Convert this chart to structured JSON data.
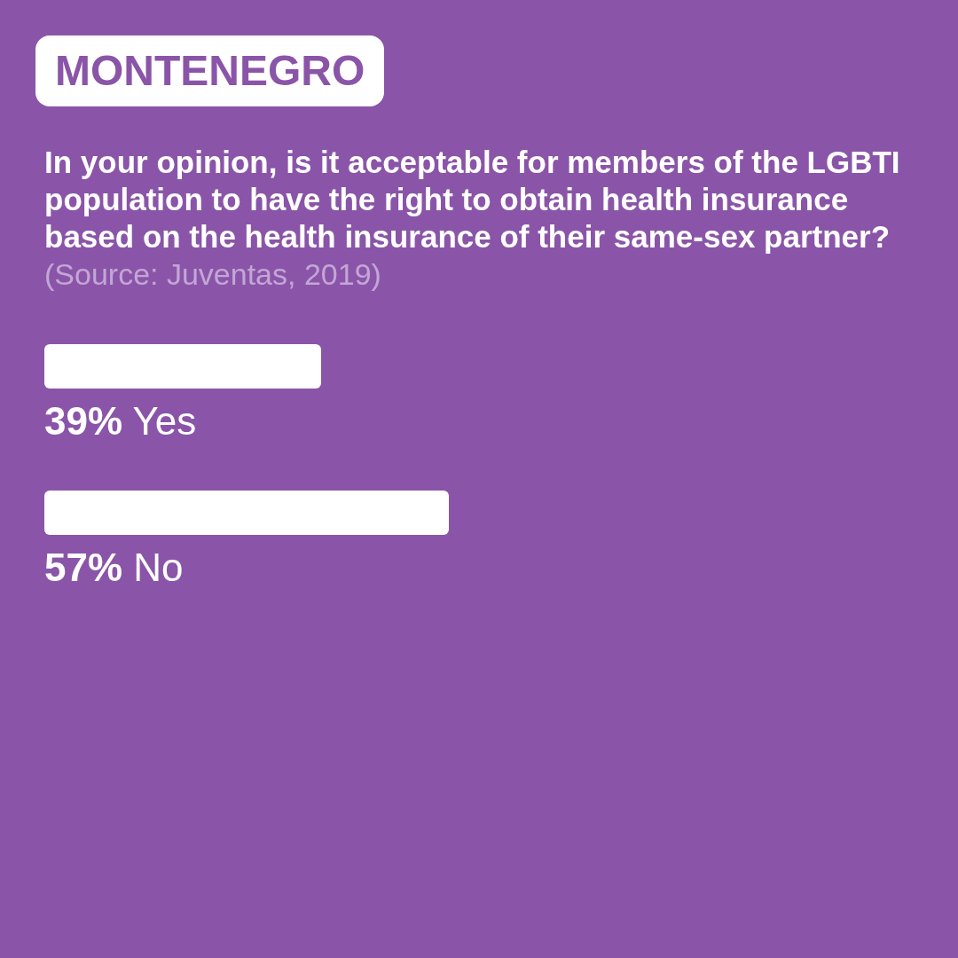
{
  "chart_data": {
    "type": "bar",
    "orientation": "horizontal",
    "title": "MONTENEGRO",
    "subtitle": "In your opinion, is it acceptable for members of the LGBTI population to have the right to obtain health insurance based on the health insurance of their same-sex partner?",
    "annotations": [
      "(Source: Juventas, 2019)"
    ],
    "categories": [
      "Yes",
      "No"
    ],
    "values": [
      39,
      57
    ],
    "value_labels": [
      "39%",
      "57%"
    ],
    "color": "#ffffff",
    "legend": false,
    "grid": false
  }
}
